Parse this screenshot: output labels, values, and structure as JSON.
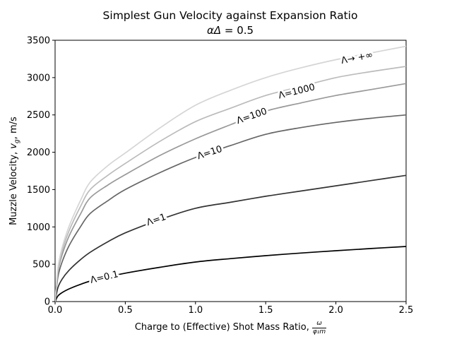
{
  "chart_data": {
    "type": "line",
    "title": "Simplest Gun Velocity against Expansion Ratio",
    "subtitle_symbols": "αΔ",
    "subtitle_eq": " = 0.5",
    "xlabel_prefix": "Charge to (Effective) Shot Mass Ratio,",
    "xlabel_frac_num": "ω",
    "xlabel_frac_den": "φ₁m",
    "ylabel_prefix": "Muzzle Velocity, ",
    "ylabel_var": "v",
    "ylabel_sub": "g",
    "ylabel_suffix": ", m/s",
    "xlim": [
      0,
      2.5
    ],
    "ylim": [
      0,
      3500
    ],
    "x_ticks": [
      0.0,
      0.5,
      1.0,
      1.5,
      2.0,
      2.5
    ],
    "x_tick_labels": [
      "0.0",
      "0.5",
      "1.0",
      "1.5",
      "2.0",
      "2.5"
    ],
    "y_ticks": [
      0,
      500,
      1000,
      1500,
      2000,
      2500,
      3000,
      3500
    ],
    "y_tick_labels": [
      "0",
      "500",
      "1000",
      "1500",
      "2000",
      "2500",
      "3000",
      "3500"
    ],
    "grid": false,
    "legend": "inline curve labels",
    "x": [
      0,
      0.02,
      0.05,
      0.1,
      0.18,
      0.25,
      0.375,
      0.5,
      0.75,
      1.0,
      1.25,
      1.5,
      1.75,
      2.0,
      2.25,
      2.5
    ],
    "series": [
      {
        "name": "Λ=0.1",
        "key": "lambda-0-1",
        "lambda": "0.1",
        "color": "#000000",
        "label": {
          "x": 0.35,
          "v": 330,
          "rot": -13
        },
        "values": [
          0,
          75,
          120,
          170,
          230,
          274,
          330,
          380,
          460,
          530,
          575,
          615,
          650,
          681,
          710,
          738
        ]
      },
      {
        "name": "Λ=1",
        "key": "lambda-1",
        "lambda": "1",
        "color": "#333333",
        "label": {
          "x": 0.72,
          "v": 1100,
          "rot": -19
        },
        "values": [
          0,
          185,
          300,
          420,
          560,
          660,
          800,
          920,
          1100,
          1250,
          1330,
          1410,
          1480,
          1550,
          1620,
          1690
        ]
      },
      {
        "name": "Λ=10",
        "key": "lambda-10",
        "lambda": "10",
        "color": "#666666",
        "label": {
          "x": 1.1,
          "v": 2000,
          "rot": -18
        },
        "values": [
          0,
          330,
          530,
          750,
          1000,
          1180,
          1350,
          1500,
          1730,
          1930,
          2090,
          2240,
          2330,
          2400,
          2455,
          2500
        ]
      },
      {
        "name": "Λ=100",
        "key": "lambda-100",
        "lambda": "100",
        "color": "#999999",
        "label": {
          "x": 1.4,
          "v": 2490,
          "rot": -19
        },
        "values": [
          0,
          390,
          625,
          880,
          1170,
          1390,
          1560,
          1700,
          1960,
          2180,
          2370,
          2550,
          2660,
          2760,
          2840,
          2920
        ]
      },
      {
        "name": "Λ=1000",
        "key": "lambda-1000",
        "lambda": "1000",
        "color": "#bbbbbb",
        "label": {
          "x": 1.72,
          "v": 2820,
          "rot": -14
        },
        "values": [
          0,
          420,
          675,
          950,
          1270,
          1500,
          1690,
          1850,
          2150,
          2410,
          2590,
          2760,
          2880,
          3000,
          3080,
          3150
        ]
      },
      {
        "name": "Λ→ +∞",
        "key": "lambda-inf",
        "lambda": "∞",
        "color": "#d5d5d5",
        "label": {
          "x": 2.15,
          "v": 3270,
          "rot": -11
        },
        "values": [
          0,
          450,
          720,
          1010,
          1350,
          1600,
          1820,
          1990,
          2330,
          2630,
          2830,
          3000,
          3130,
          3240,
          3330,
          3420
        ]
      }
    ]
  }
}
